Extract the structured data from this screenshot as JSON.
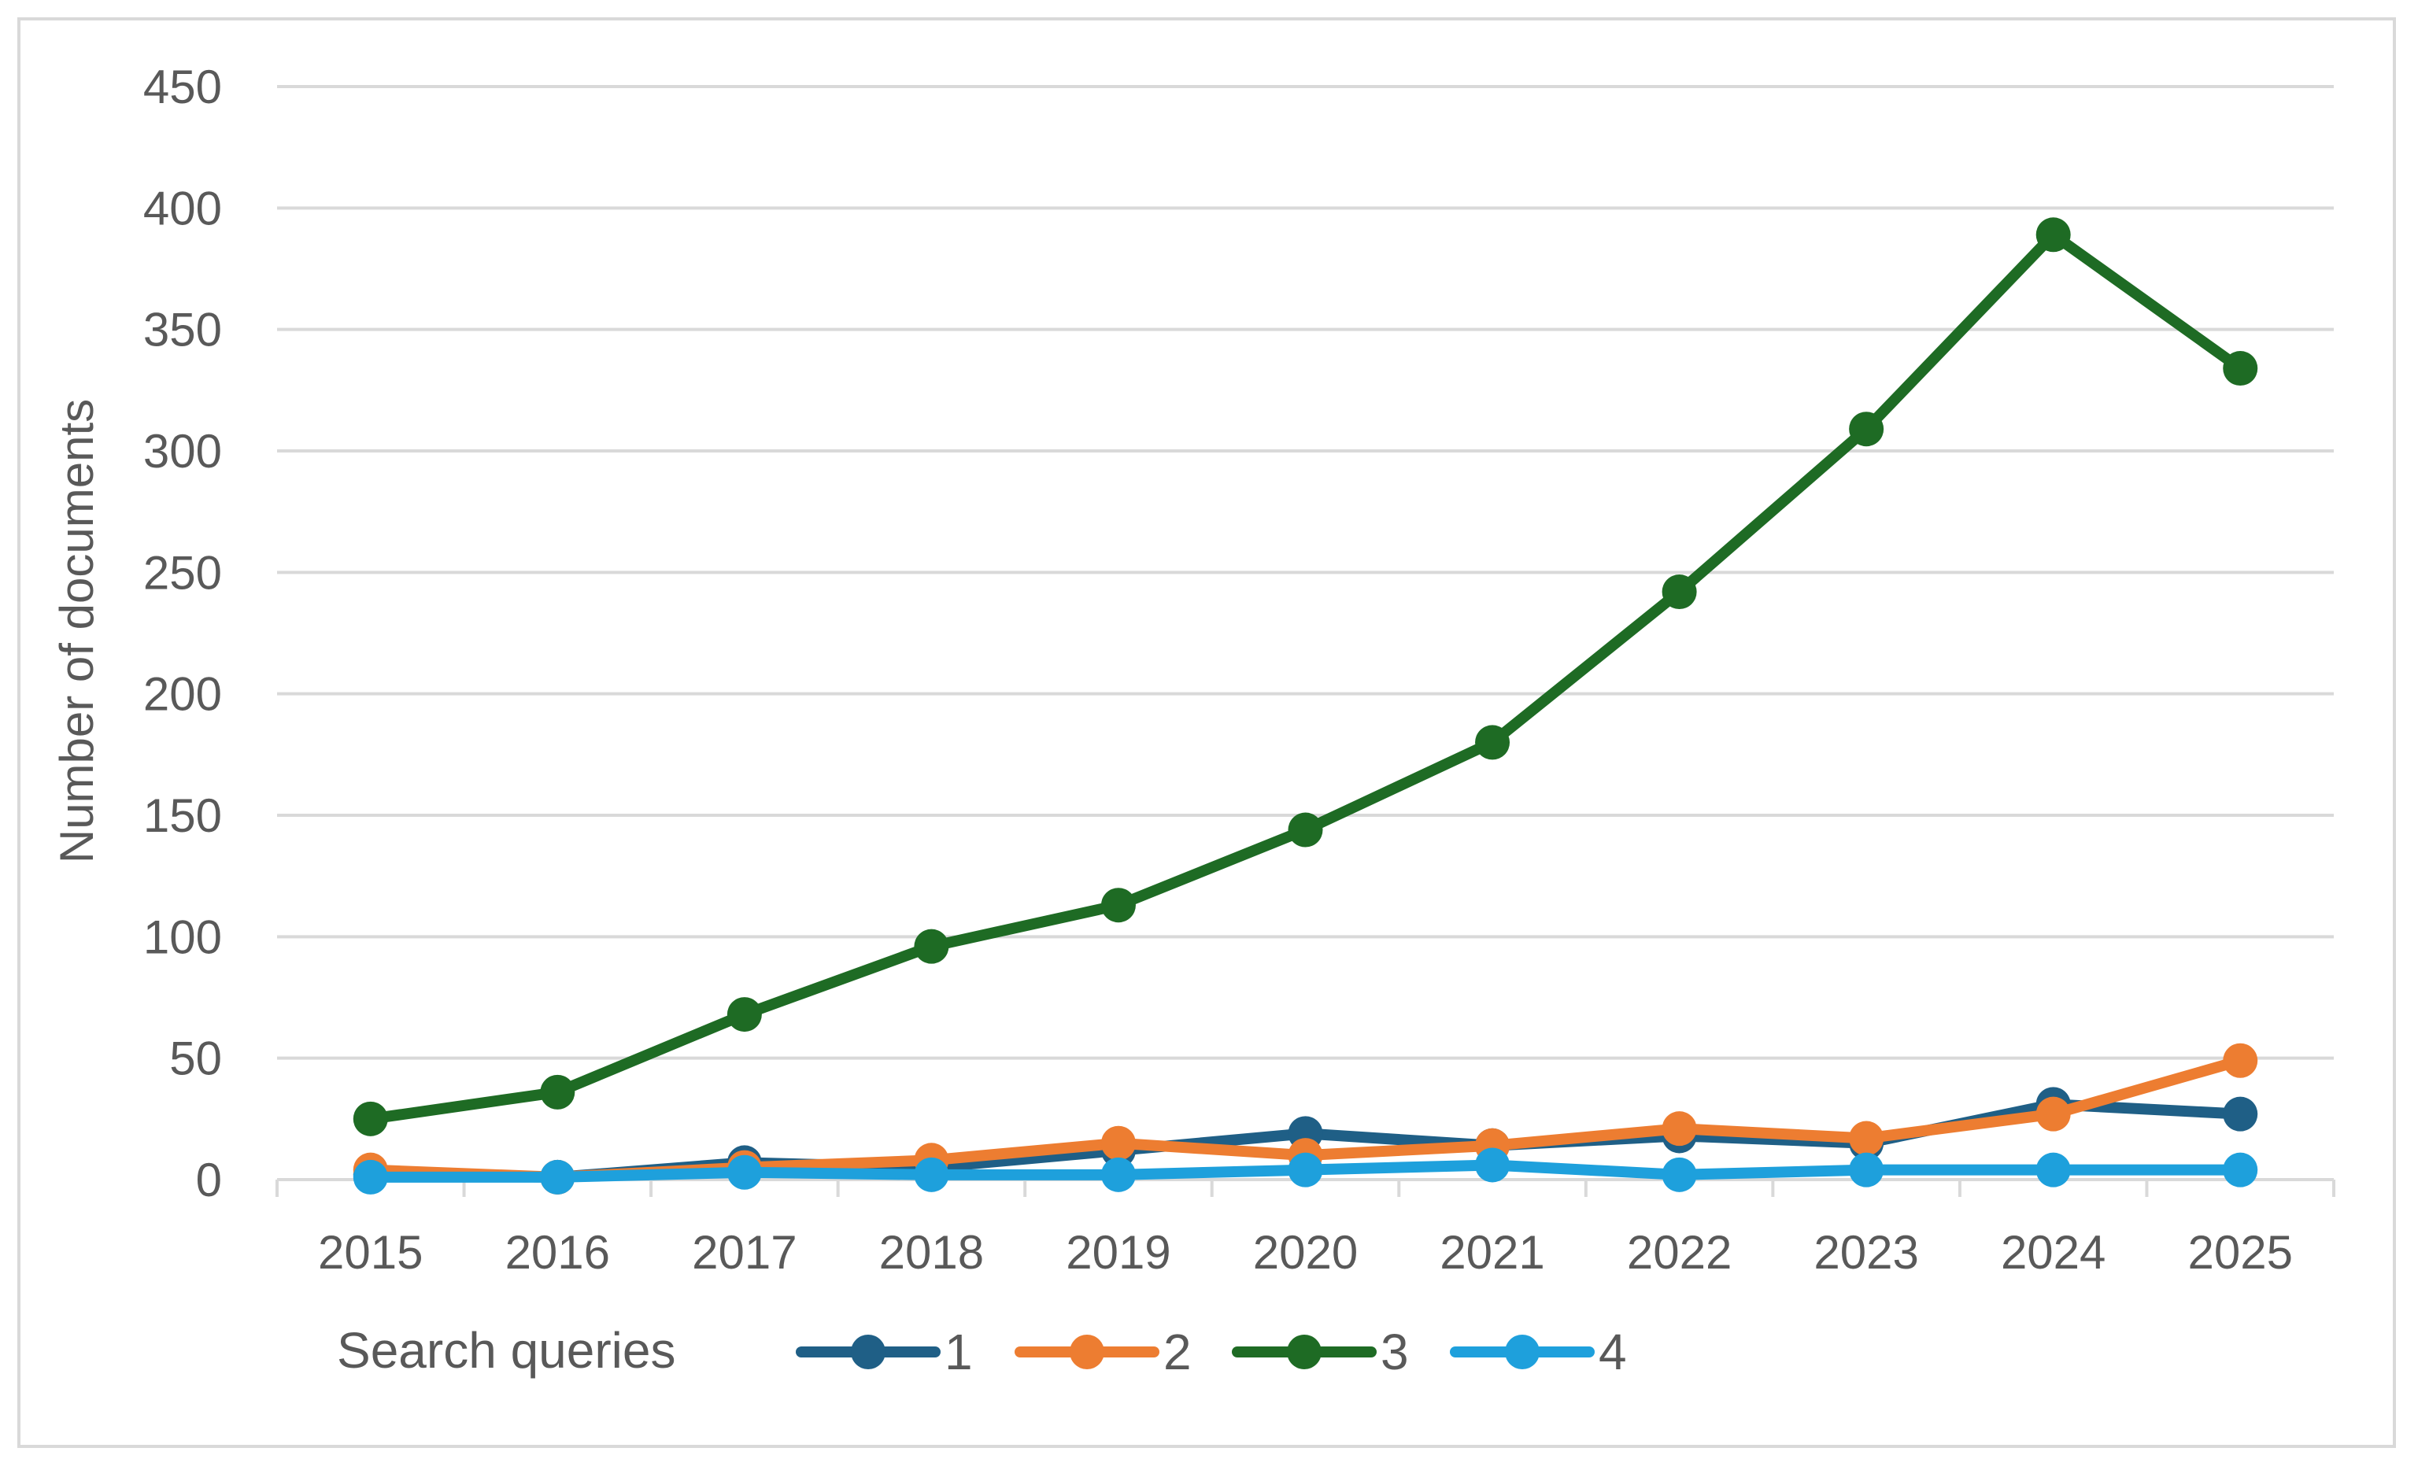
{
  "chart_data": {
    "type": "line",
    "title": "",
    "xlabel": "",
    "ylabel": "Number of documents",
    "ylim": [
      0,
      450
    ],
    "yticks": [
      0,
      50,
      100,
      150,
      200,
      250,
      300,
      350,
      400,
      450
    ],
    "grid": true,
    "legend_position": "bottom",
    "legend_title": "Search queries",
    "categories": [
      "2015",
      "2016",
      "2017",
      "2018",
      "2019",
      "2020",
      "2021",
      "2022",
      "2023",
      "2024",
      "2025"
    ],
    "series": [
      {
        "name": "1",
        "color": "#1f5f86",
        "values": [
          2,
          1,
          7,
          5,
          12,
          19,
          14,
          18,
          15,
          31,
          27
        ]
      },
      {
        "name": "2",
        "color": "#ed7d31",
        "values": [
          4,
          1,
          5,
          8,
          15,
          10,
          14,
          21,
          17,
          27,
          49
        ]
      },
      {
        "name": "3",
        "color": "#1e6b24",
        "values": [
          25,
          36,
          68,
          96,
          113,
          144,
          180,
          242,
          309,
          389,
          334
        ]
      },
      {
        "name": "4",
        "color": "#1ea0dc",
        "values": [
          1,
          1,
          3,
          2,
          2,
          4,
          6,
          2,
          4,
          4,
          4
        ]
      }
    ],
    "gridline_color": "#d9d9d9",
    "axis_color": "#d9d9d9"
  }
}
